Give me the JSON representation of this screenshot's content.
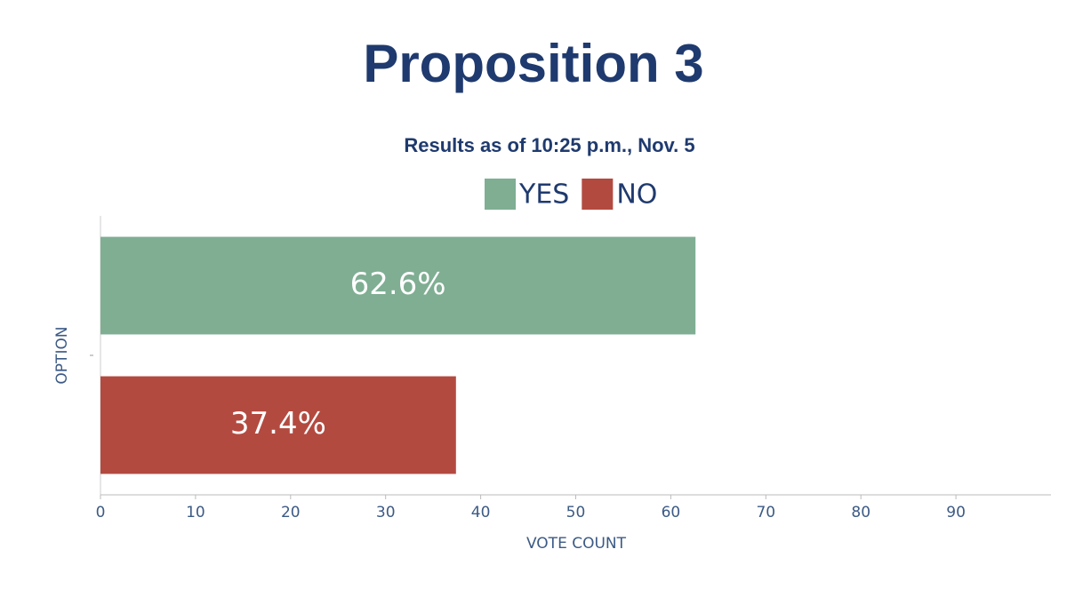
{
  "chart_data": {
    "type": "bar",
    "orientation": "horizontal",
    "title": "Proposition 3",
    "subtitle": "Results as of 10:25 p.m., Nov. 5",
    "x_label": "VOTE COUNT",
    "y_label": "OPTION",
    "categories": [
      null
    ],
    "series": [
      {
        "name": "YES",
        "color": "#7fae93",
        "values": [
          62.6
        ],
        "value_labels": [
          "62.6%"
        ]
      },
      {
        "name": "NO",
        "color": "#b34a40",
        "values": [
          37.4
        ],
        "value_labels": [
          "37.4%"
        ]
      }
    ],
    "xlim": [
      0,
      100
    ],
    "xticks": [
      0,
      10,
      20,
      30,
      40,
      50,
      60,
      70,
      80,
      90
    ],
    "legend": "top"
  }
}
